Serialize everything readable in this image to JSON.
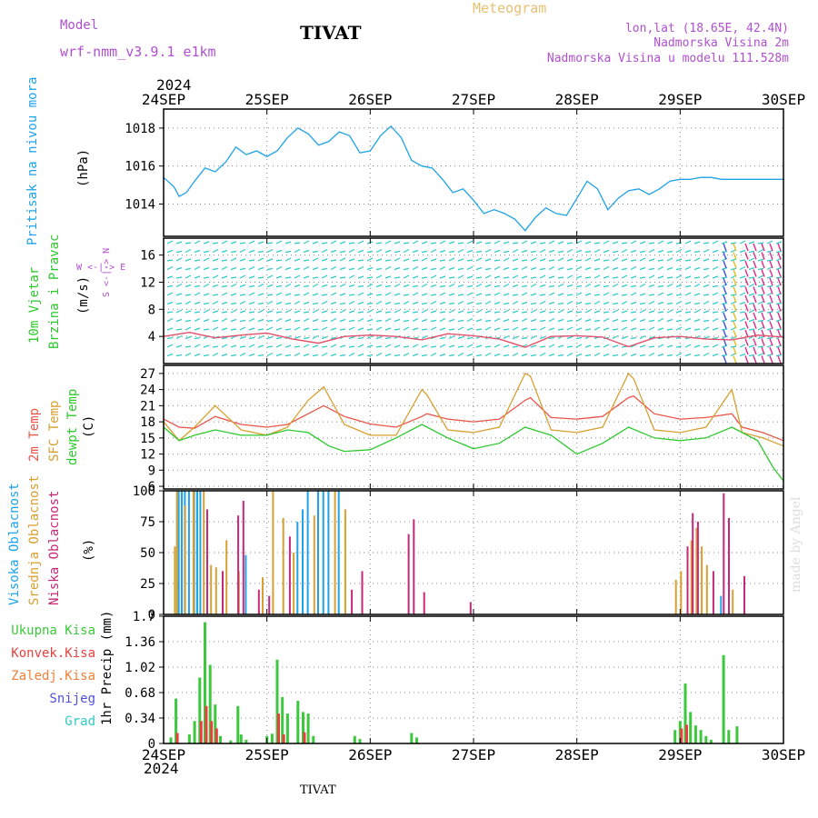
{
  "header": {
    "model_label": "Model",
    "model_name": "wrf-nmm_v3.9.1 e1km",
    "station": "TIVAT",
    "meteogram": "Meteogram",
    "coords": "lon,lat (18.65E, 42.4N)",
    "elevation": "Nadmorska Visina 2m",
    "model_elevation": "Nadmorska Visina u modelu 111.528m",
    "year_top": "2024",
    "year_bottom": "2024",
    "footer_station": "TIVAT",
    "credit": "made by Angel"
  },
  "colors": {
    "pressure": "#1fa3e8",
    "wind_main": "#2ec8c8",
    "wind_speed": "#e0506a",
    "temp2m": "#e8554a",
    "sfc": "#d8a030",
    "dewpt": "#2ec82e",
    "high_cloud": "#1fa3e8",
    "mid_cloud": "#d8a030",
    "low_cloud": "#c8287a",
    "total_rain": "#3cc83c",
    "conv_rain": "#e84040",
    "frz_rain": "#f0803a",
    "snow": "#5050e0",
    "hail": "#30c8c8",
    "header_purple": "#b050d0",
    "header_orange": "#e8c070"
  },
  "chart_data": [
    {
      "type": "line",
      "panel": "pressure",
      "title": "Pritisak na nivou mora",
      "ylabel": "(hPa)",
      "x_ticks": [
        "24SEP",
        "25SEP",
        "26SEP",
        "27SEP",
        "28SEP",
        "29SEP",
        "30SEP"
      ],
      "ylim": [
        1012.3,
        1019
      ],
      "yticks": [
        1014,
        1016,
        1018
      ],
      "grid": true,
      "series": [
        {
          "name": "Pritisak na nivou mora",
          "x": [
            0,
            0.1,
            0.15,
            0.22,
            0.3,
            0.4,
            0.5,
            0.6,
            0.7,
            0.8,
            0.9,
            1.0,
            1.1,
            1.2,
            1.3,
            1.4,
            1.5,
            1.6,
            1.7,
            1.8,
            1.9,
            2.0,
            2.1,
            2.2,
            2.3,
            2.4,
            2.5,
            2.6,
            2.7,
            2.8,
            2.9,
            3.0,
            3.1,
            3.2,
            3.3,
            3.4,
            3.5,
            3.6,
            3.7,
            3.8,
            3.9,
            4.0,
            4.1,
            4.2,
            4.3,
            4.4,
            4.5,
            4.6,
            4.7,
            4.8,
            4.9,
            5.0,
            5.1,
            5.2,
            5.3,
            5.4,
            5.5,
            5.6,
            5.7,
            5.8,
            5.9,
            6.0
          ],
          "values": [
            1015.4,
            1014.9,
            1014.4,
            1014.6,
            1015.2,
            1015.9,
            1015.7,
            1016.2,
            1017.0,
            1016.6,
            1016.8,
            1016.5,
            1016.8,
            1017.5,
            1018.0,
            1017.7,
            1017.1,
            1017.3,
            1017.8,
            1017.6,
            1016.7,
            1016.8,
            1017.6,
            1018.1,
            1017.5,
            1016.3,
            1016.0,
            1015.9,
            1015.3,
            1014.6,
            1014.8,
            1014.2,
            1013.5,
            1013.7,
            1013.5,
            1013.2,
            1012.6,
            1013.3,
            1013.8,
            1013.5,
            1013.4,
            1014.3,
            1015.2,
            1014.8,
            1013.7,
            1014.3,
            1014.7,
            1014.8,
            1014.5,
            1014.8,
            1015.2,
            1015.3,
            1015.3,
            1015.4,
            1015.4,
            1015.3,
            1015.3,
            1015.3,
            1015.3,
            1015.3,
            1015.3,
            1015.3
          ]
        }
      ]
    },
    {
      "type": "line",
      "panel": "wind",
      "title": "10m Vjetar",
      "subtitle": "Brzina i Pravac",
      "ylabel": "(m/s)",
      "legend_text": "W <-|-> E",
      "legend_vert": "S <-|-> N",
      "ylim": [
        0,
        18.5
      ],
      "yticks": [
        4,
        8,
        12,
        16
      ],
      "grid": true,
      "series": [
        {
          "name": "Brzina",
          "x": [
            0,
            0.25,
            0.5,
            0.75,
            1.0,
            1.25,
            1.5,
            1.75,
            2.0,
            2.25,
            2.5,
            2.75,
            3.0,
            3.25,
            3.5,
            3.75,
            4.0,
            4.25,
            4.5,
            4.75,
            5.0,
            5.25,
            5.5,
            5.75,
            6.0
          ],
          "values": [
            4.0,
            4.6,
            3.8,
            4.2,
            4.5,
            3.6,
            3.0,
            4.0,
            4.2,
            4.0,
            3.5,
            4.4,
            4.1,
            3.6,
            2.4,
            4.0,
            4.1,
            3.9,
            2.5,
            3.8,
            4.0,
            3.6,
            3.5,
            4.2,
            3.9
          ]
        }
      ]
    },
    {
      "type": "line",
      "panel": "temperature",
      "ylabel": "(C)",
      "ylim": [
        5.5,
        28.5
      ],
      "yticks": [
        6,
        9,
        12,
        15,
        18,
        21,
        24,
        27
      ],
      "grid": true,
      "series": [
        {
          "name": "2m Temp",
          "x": [
            0,
            0.15,
            0.3,
            0.5,
            0.75,
            1.0,
            1.2,
            1.4,
            1.55,
            1.75,
            2.0,
            2.25,
            2.5,
            2.55,
            2.75,
            3.0,
            3.25,
            3.5,
            3.55,
            3.75,
            4.0,
            4.25,
            4.5,
            4.55,
            4.75,
            5.0,
            5.25,
            5.5,
            5.6,
            5.8,
            6.0
          ],
          "values": [
            18.5,
            17.0,
            16.8,
            19.0,
            17.5,
            17.0,
            17.5,
            19.5,
            21.0,
            19.0,
            17.6,
            17.0,
            19.0,
            19.5,
            18.5,
            18.0,
            18.5,
            22.0,
            22.5,
            18.8,
            18.5,
            19.0,
            22.5,
            22.8,
            19.5,
            18.5,
            18.8,
            19.5,
            17.0,
            16.0,
            14.5
          ]
        },
        {
          "name": "SFC Temp",
          "x": [
            0,
            0.15,
            0.3,
            0.5,
            0.75,
            1.0,
            1.2,
            1.4,
            1.55,
            1.75,
            2.0,
            2.25,
            2.5,
            2.55,
            2.75,
            3.0,
            3.25,
            3.5,
            3.55,
            3.75,
            4.0,
            4.25,
            4.5,
            4.55,
            4.75,
            5.0,
            5.25,
            5.5,
            5.6,
            5.8,
            6.0
          ],
          "values": [
            18.0,
            14.5,
            17.0,
            21.0,
            16.5,
            15.5,
            17.0,
            22.0,
            24.5,
            17.5,
            15.5,
            15.5,
            24.0,
            23.0,
            16.5,
            16.0,
            17.0,
            27.0,
            26.5,
            16.5,
            16.0,
            17.0,
            27.0,
            26.0,
            16.5,
            16.0,
            17.0,
            24.0,
            16.0,
            15.0,
            13.5
          ]
        },
        {
          "name": "dewpt Temp",
          "x": [
            0,
            0.15,
            0.3,
            0.5,
            0.75,
            1.0,
            1.2,
            1.4,
            1.6,
            1.75,
            2.0,
            2.25,
            2.5,
            2.75,
            3.0,
            3.25,
            3.5,
            3.75,
            4.0,
            4.25,
            4.5,
            4.75,
            5.0,
            5.25,
            5.5,
            5.75,
            5.9,
            6.0
          ],
          "values": [
            17.0,
            14.5,
            15.5,
            16.5,
            15.5,
            15.5,
            16.5,
            16.0,
            13.5,
            12.5,
            12.8,
            15.0,
            17.5,
            15.0,
            13.0,
            14.0,
            17.0,
            15.5,
            12.0,
            14.0,
            17.0,
            15.0,
            14.5,
            15.0,
            17.0,
            14.5,
            9.5,
            7.0
          ]
        }
      ]
    },
    {
      "type": "bar",
      "panel": "clouds",
      "ylabel": "(%)",
      "ylim": [
        0,
        100
      ],
      "yticks": [
        0,
        25,
        50,
        75,
        100
      ],
      "grid": true,
      "series": [
        {
          "name": "Visoka Oblacnost",
          "x": [
            0.15,
            0.18,
            0.21,
            0.25,
            0.3,
            0.33,
            0.36,
            0.8,
            1.3,
            1.35,
            1.4,
            1.5,
            1.55,
            1.6,
            1.7,
            5.4
          ],
          "values": [
            100,
            100,
            100,
            100,
            100,
            100,
            100,
            48,
            75,
            85,
            100,
            100,
            100,
            100,
            100,
            15
          ]
        },
        {
          "name": "Srednja Oblacnost",
          "x": [
            0.1,
            0.12,
            0.2,
            0.28,
            0.38,
            0.45,
            0.5,
            0.6,
            0.72,
            0.95,
            1.05,
            1.15,
            1.25,
            1.45,
            1.65,
            1.75,
            4.95,
            5.0,
            5.1,
            5.15,
            5.2,
            5.25,
            5.5
          ],
          "values": [
            55,
            100,
            88,
            100,
            100,
            40,
            38,
            60,
            35,
            30,
            100,
            78,
            50,
            80,
            100,
            85,
            28,
            35,
            60,
            70,
            55,
            40,
            20
          ]
        },
        {
          "name": "Niska Oblacnost",
          "x": [
            0.4,
            0.55,
            0.7,
            0.75,
            0.9,
            1.0,
            1.2,
            1.8,
            1.9,
            2.35,
            2.4,
            2.5,
            2.95,
            5.05,
            5.1,
            5.15,
            5.3,
            5.4,
            5.45,
            5.6
          ],
          "values": [
            85,
            35,
            80,
            92,
            20,
            15,
            63,
            20,
            35,
            65,
            77,
            18,
            10,
            55,
            82,
            75,
            35,
            98,
            78,
            31
          ]
        }
      ]
    },
    {
      "type": "bar",
      "panel": "precip",
      "ylabel": "1hr Precip (mm)",
      "ylim": [
        0,
        1.7
      ],
      "yticks": [
        0,
        0.34,
        0.68,
        1.02,
        1.36,
        1.7
      ],
      "grid": true,
      "series": [
        {
          "name": "Ukupna Kisa",
          "x": [
            0.07,
            0.12,
            0.25,
            0.3,
            0.35,
            0.4,
            0.45,
            0.5,
            0.55,
            0.65,
            0.72,
            0.75,
            0.8,
            1.0,
            1.05,
            1.1,
            1.15,
            1.2,
            1.3,
            1.35,
            1.4,
            1.45,
            1.85,
            1.9,
            2.4,
            2.45,
            4.95,
            5.0,
            5.05,
            5.1,
            5.15,
            5.2,
            5.25,
            5.3,
            5.42,
            5.47,
            5.55
          ],
          "values": [
            0.08,
            0.6,
            0.12,
            0.3,
            0.88,
            1.62,
            1.05,
            0.52,
            0.1,
            0.04,
            0.5,
            0.12,
            0.05,
            0.1,
            0.13,
            1.12,
            0.62,
            0.4,
            0.57,
            0.42,
            0.4,
            0.1,
            0.1,
            0.06,
            0.14,
            0.08,
            0.18,
            0.3,
            0.8,
            0.42,
            0.24,
            0.18,
            0.1,
            0.05,
            1.18,
            0.18,
            0.23
          ]
        },
        {
          "name": "Konvek.Kisa",
          "x": [
            0.12,
            0.35,
            0.4,
            0.45,
            0.5,
            1.1,
            1.15,
            1.35,
            5.0,
            5.05
          ],
          "values": [
            0.14,
            0.3,
            0.5,
            0.3,
            0.2,
            0.4,
            0.12,
            0.15,
            0.2,
            0.25
          ]
        },
        {
          "name": "Zaledj.Kisa",
          "x": [],
          "values": []
        },
        {
          "name": "Snijeg",
          "x": [],
          "values": []
        },
        {
          "name": "Grad",
          "x": [],
          "values": []
        }
      ]
    }
  ]
}
